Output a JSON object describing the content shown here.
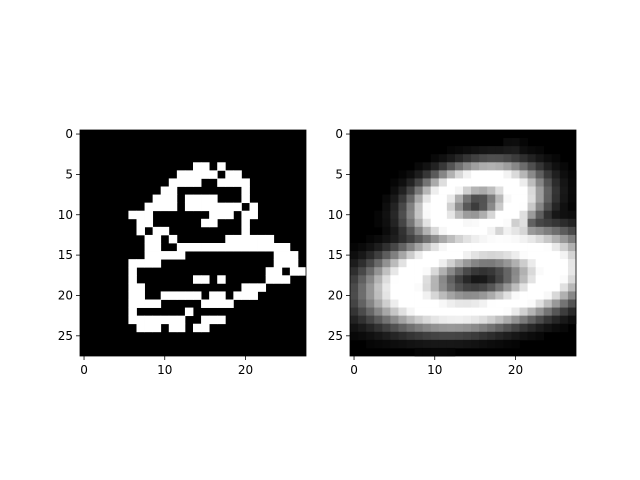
{
  "chart_data": [
    {
      "type": "heatmap",
      "title": "",
      "xlabel": "",
      "ylabel": "",
      "colormap": "gray",
      "xlim": [
        -0.5,
        27.5
      ],
      "ylim": [
        27.5,
        -0.5
      ],
      "xticks": [
        0,
        10,
        20
      ],
      "yticks": [
        0,
        5,
        10,
        15,
        20,
        25
      ],
      "grid": false,
      "shape": [
        28,
        28
      ],
      "rows": [
        "............................",
        "............................",
        "............................",
        "............................",
        "..............##.#..........",
        "............#####.##........",
        "...........####..####.......",
        "..........##........#.......",
        ".........###.####...#.......",
        "........####.#######.#......",
        "......###.......###.##......",
        ".......##......##...#.......",
        ".......#.##.........#.......",
        "........##.#......######....",
        "........##..##############..",
        "........#####...........###.",
        "......####..............###.",
        "......#................##.##",
        "......#.......##.#.....###..",
        "......##............###.....",
        "......##..#####.##.###......",
        "......####.....####.........",
        "......#......#..............",
        "......#######..###..........",
        ".......###.##.##............",
        "............................",
        "............................",
        "............................"
      ]
    },
    {
      "type": "heatmap",
      "title": "",
      "xlabel": "",
      "ylabel": "",
      "colormap": "gray",
      "xlim": [
        -0.5,
        27.5
      ],
      "ylim": [
        27.5,
        -0.5
      ],
      "xticks": [
        0,
        10,
        20
      ],
      "yticks": [
        0,
        5,
        10,
        15,
        20,
        25
      ],
      "grid": false,
      "shape": [
        28,
        28
      ],
      "strokes": [
        {
          "cx": 15.2,
          "cy": 8.6,
          "rx": 5.2,
          "ry": 3.0,
          "rotate": -12,
          "width": 1.5,
          "intensity": 1.0
        },
        {
          "cx": 15.5,
          "cy": 17.9,
          "rx": 9.3,
          "ry": 4.0,
          "rotate": -8,
          "width": 1.7,
          "intensity": 1.0
        },
        {
          "cx": 19.6,
          "cy": 10.5,
          "rx": 1.0,
          "ry": 3.0,
          "rotate": 0,
          "width": 0.9,
          "intensity": 0.9
        }
      ]
    }
  ]
}
